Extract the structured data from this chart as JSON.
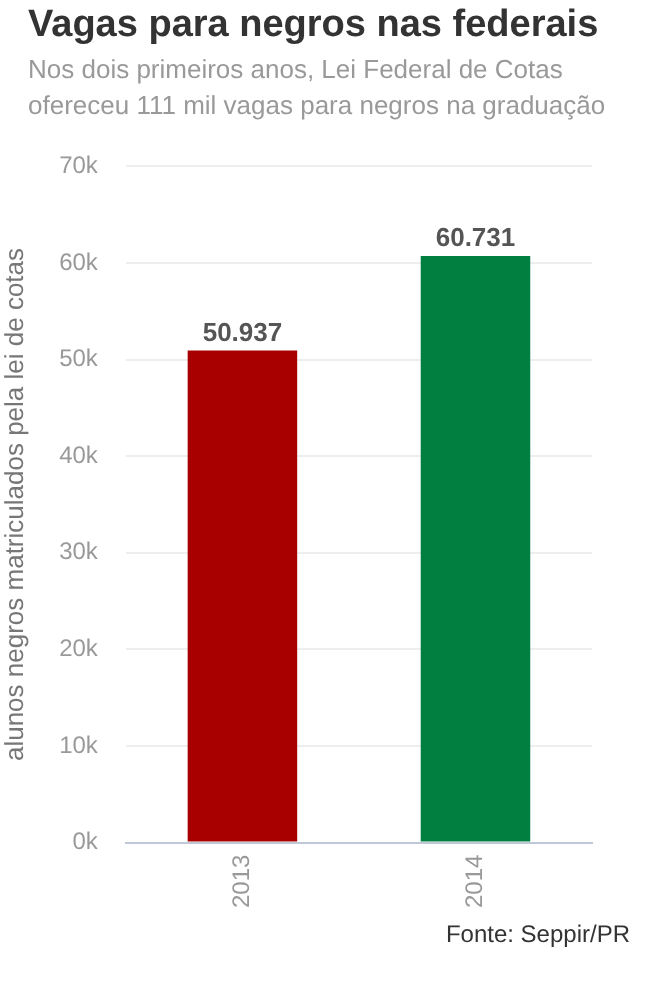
{
  "chart_data": {
    "type": "bar",
    "title": "Vagas para negros nas federais",
    "subtitle": "Nos dois primeiros anos, Lei Federal de Cotas ofereceu 111 mil vagas para negros na graduação",
    "ylabel": "alunos negros matriculados pela lei de cotas",
    "annotations": [
      "Fonte: Seppir/PR"
    ],
    "categories": [
      "2013",
      "2014"
    ],
    "values": [
      50937,
      60731
    ],
    "value_labels": [
      "50.937",
      "60.731"
    ],
    "colors": [
      "#a80000",
      "#007f40"
    ],
    "ylim": [
      0,
      70000
    ],
    "yticks": [
      {
        "value": 0,
        "label": "0k"
      },
      {
        "value": 10000,
        "label": "10k"
      },
      {
        "value": 20000,
        "label": "20k"
      },
      {
        "value": 30000,
        "label": "30k"
      },
      {
        "value": 40000,
        "label": "40k"
      },
      {
        "value": 50000,
        "label": "50k"
      },
      {
        "value": 60000,
        "label": "60k"
      },
      {
        "value": 70000,
        "label": "70k"
      }
    ],
    "grid": "y",
    "legend": false
  }
}
